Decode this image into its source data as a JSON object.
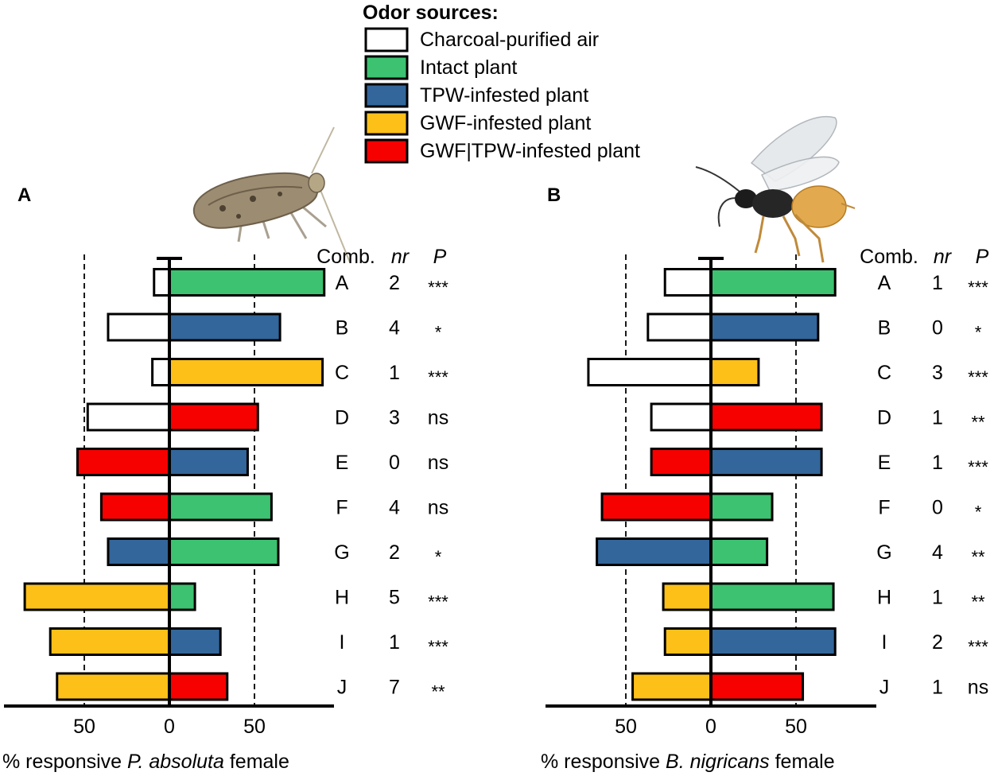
{
  "legend": {
    "title": "Odor sources:",
    "items": [
      {
        "key": "air",
        "label": "Charcoal-purified air",
        "color": "#ffffff"
      },
      {
        "key": "intact",
        "label": "Intact plant",
        "color": "#3cc270"
      },
      {
        "key": "tpw",
        "label": "TPW-infested plant",
        "color": "#33669a"
      },
      {
        "key": "gwf",
        "label": "GWF-infested plant",
        "color": "#fdc018"
      },
      {
        "key": "both",
        "label": "GWF|TPW-infested plant",
        "color": "#f70000"
      }
    ]
  },
  "insects": {
    "moth": "moth-photo",
    "wasp": "wasp-photo"
  },
  "chart_data": [
    {
      "type": "bar",
      "panel": "A",
      "xlabel_prefix": "% responsive ",
      "xlabel_species": "P. absoluta",
      "xlabel_suffix": " female",
      "xticks": [
        50,
        0,
        50
      ],
      "xlim": [
        -95,
        95
      ],
      "headers": {
        "comb": "Comb.",
        "nr": "nr",
        "p": "P"
      },
      "rows": [
        {
          "comb": "A",
          "left_source": "air",
          "left": 9,
          "right_source": "intact",
          "right": 91,
          "nr": "2",
          "p": "***"
        },
        {
          "comb": "B",
          "left_source": "air",
          "left": 36,
          "right_source": "tpw",
          "right": 65,
          "nr": "4",
          "p": "*"
        },
        {
          "comb": "C",
          "left_source": "air",
          "left": 10,
          "right_source": "gwf",
          "right": 90,
          "nr": "1",
          "p": "***"
        },
        {
          "comb": "D",
          "left_source": "air",
          "left": 48,
          "right_source": "both",
          "right": 52,
          "nr": "3",
          "p": "ns"
        },
        {
          "comb": "E",
          "left_source": "both",
          "left": 54,
          "right_source": "tpw",
          "right": 46,
          "nr": "0",
          "p": "ns"
        },
        {
          "comb": "F",
          "left_source": "both",
          "left": 40,
          "right_source": "intact",
          "right": 60,
          "nr": "4",
          "p": "ns"
        },
        {
          "comb": "G",
          "left_source": "tpw",
          "left": 36,
          "right_source": "intact",
          "right": 64,
          "nr": "2",
          "p": "*"
        },
        {
          "comb": "H",
          "left_source": "gwf",
          "left": 85,
          "right_source": "intact",
          "right": 15,
          "nr": "5",
          "p": "***"
        },
        {
          "comb": "I",
          "left_source": "gwf",
          "left": 70,
          "right_source": "tpw",
          "right": 30,
          "nr": "1",
          "p": "***"
        },
        {
          "comb": "J",
          "left_source": "gwf",
          "left": 66,
          "right_source": "both",
          "right": 34,
          "nr": "7",
          "p": "**"
        }
      ]
    },
    {
      "type": "bar",
      "panel": "B",
      "xlabel_prefix": "% responsive ",
      "xlabel_species": "B. nigricans",
      "xlabel_suffix": " female",
      "xticks": [
        50,
        0,
        50
      ],
      "xlim": [
        -95,
        95
      ],
      "headers": {
        "comb": "Comb.",
        "nr": "nr",
        "p": "P"
      },
      "rows": [
        {
          "comb": "A",
          "left_source": "air",
          "left": 27,
          "right_source": "intact",
          "right": 73,
          "nr": "1",
          "p": "***"
        },
        {
          "comb": "B",
          "left_source": "air",
          "left": 37,
          "right_source": "tpw",
          "right": 63,
          "nr": "0",
          "p": "*"
        },
        {
          "comb": "C",
          "left_source": "air",
          "left": 72,
          "right_source": "gwf",
          "right": 28,
          "nr": "3",
          "p": "***"
        },
        {
          "comb": "D",
          "left_source": "air",
          "left": 35,
          "right_source": "both",
          "right": 65,
          "nr": "1",
          "p": "**"
        },
        {
          "comb": "E",
          "left_source": "both",
          "left": 35,
          "right_source": "tpw",
          "right": 65,
          "nr": "1",
          "p": "***"
        },
        {
          "comb": "F",
          "left_source": "both",
          "left": 64,
          "right_source": "intact",
          "right": 36,
          "nr": "0",
          "p": "*"
        },
        {
          "comb": "G",
          "left_source": "tpw",
          "left": 67,
          "right_source": "intact",
          "right": 33,
          "nr": "4",
          "p": "**"
        },
        {
          "comb": "H",
          "left_source": "gwf",
          "left": 28,
          "right_source": "intact",
          "right": 72,
          "nr": "1",
          "p": "**"
        },
        {
          "comb": "I",
          "left_source": "gwf",
          "left": 27,
          "right_source": "tpw",
          "right": 73,
          "nr": "2",
          "p": "***"
        },
        {
          "comb": "J",
          "left_source": "gwf",
          "left": 46,
          "right_source": "both",
          "right": 54,
          "nr": "1",
          "p": "ns"
        }
      ]
    }
  ]
}
